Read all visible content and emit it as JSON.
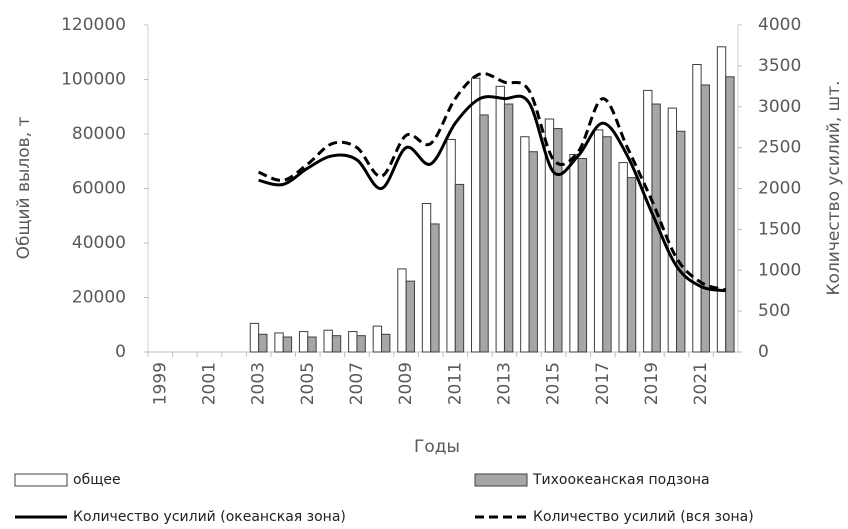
{
  "chart_data": {
    "type": "bar",
    "x_label": "Годы",
    "y_label": "Общий вылов, т",
    "y2_label": "Количество усилий, шт.",
    "categories": [
      "1999",
      null,
      "2001",
      null,
      "2003",
      null,
      "2005",
      null,
      "2007",
      null,
      "2009",
      null,
      "2011",
      null,
      "2013",
      null,
      "2015",
      null,
      "2017",
      null,
      "2019",
      null,
      "2021",
      null
    ],
    "ylim": [
      0,
      120000
    ],
    "yticks": [
      0,
      20000,
      40000,
      60000,
      80000,
      100000,
      120000
    ],
    "y2lim": [
      0,
      4000
    ],
    "y2ticks": [
      0,
      500,
      1000,
      1500,
      2000,
      2500,
      3000,
      3500,
      4000
    ],
    "grid": false,
    "series": [
      {
        "name": "общее",
        "type": "bar",
        "color": "#ffffff",
        "values": [
          null,
          null,
          null,
          null,
          10500,
          7000,
          7500,
          8000,
          7500,
          9500,
          30500,
          54500,
          78000,
          100500,
          97500,
          79000,
          85500,
          72500,
          81500,
          69500,
          96000,
          89500,
          105500,
          112000
        ]
      },
      {
        "name": "Тихоокеанская подзона",
        "type": "bar",
        "color": "#a6a6a6",
        "values": [
          null,
          null,
          null,
          null,
          6500,
          5500,
          5500,
          6000,
          6000,
          6500,
          26000,
          47000,
          61500,
          87000,
          91000,
          73500,
          82000,
          71000,
          79000,
          64000,
          91000,
          81000,
          98000,
          101000
        ]
      },
      {
        "name": "Количество усилий (океанская зона)",
        "type": "line",
        "axis": "y2",
        "color": "#000000",
        "dashed": false,
        "values": [
          null,
          null,
          null,
          null,
          2100,
          2050,
          2250,
          2400,
          2350,
          2000,
          2500,
          2300,
          2800,
          3100,
          3100,
          3050,
          2200,
          2400,
          2800,
          2400,
          1700,
          1050,
          800,
          750
        ]
      },
      {
        "name": "Количество усилий (вся зона)",
        "type": "line",
        "axis": "y2",
        "color": "#000000",
        "dashed": true,
        "values": [
          null,
          null,
          null,
          null,
          2200,
          2100,
          2300,
          2550,
          2500,
          2150,
          2650,
          2550,
          3100,
          3400,
          3300,
          3200,
          2350,
          2450,
          3100,
          2500,
          1850,
          1150,
          850,
          760
        ]
      }
    ]
  }
}
